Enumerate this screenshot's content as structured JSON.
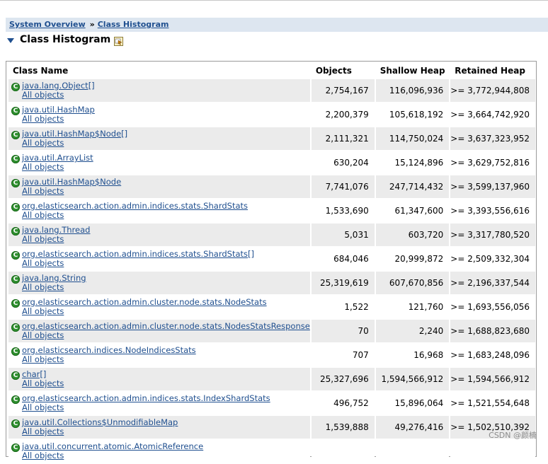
{
  "breadcrumb": {
    "item1": "System Overview",
    "separator": "»",
    "item2": "Class Histogram"
  },
  "heading": {
    "title": "Class Histogram"
  },
  "table": {
    "headers": {
      "class_name": "Class Name",
      "objects": "Objects",
      "shallow": "Shallow Heap",
      "retained": "Retained Heap"
    },
    "all_objects_label": "All objects",
    "rows": [
      {
        "name": "java.lang.Object[]",
        "all": "All objects",
        "objects": "2,754,167",
        "shallow": "116,096,936",
        "retained": ">= 3,772,944,808"
      },
      {
        "name": "java.util.HashMap",
        "all": "All objects",
        "objects": "2,200,379",
        "shallow": "105,618,192",
        "retained": ">= 3,664,742,920"
      },
      {
        "name": "java.util.HashMap$Node[]",
        "all": "All objects",
        "objects": "2,111,321",
        "shallow": "114,750,024",
        "retained": ">= 3,637,323,952"
      },
      {
        "name": "java.util.ArrayList",
        "all": "All objects",
        "objects": "630,204",
        "shallow": "15,124,896",
        "retained": ">= 3,629,752,816"
      },
      {
        "name": "java.util.HashMap$Node",
        "all": "All objects",
        "objects": "7,741,076",
        "shallow": "247,714,432",
        "retained": ">= 3,599,137,960"
      },
      {
        "name": "org.elasticsearch.action.admin.indices.stats.ShardStats",
        "all": "All objects",
        "objects": "1,533,690",
        "shallow": "61,347,600",
        "retained": ">= 3,393,556,616"
      },
      {
        "name": "java.lang.Thread",
        "all": "All objects",
        "objects": "5,031",
        "shallow": "603,720",
        "retained": ">= 3,317,780,520"
      },
      {
        "name": "org.elasticsearch.action.admin.indices.stats.ShardStats[]",
        "all": "All objects",
        "objects": "684,046",
        "shallow": "20,999,872",
        "retained": ">= 2,509,332,304"
      },
      {
        "name": "java.lang.String",
        "all": "All objects",
        "objects": "25,319,619",
        "shallow": "607,670,856",
        "retained": ">= 2,196,337,544"
      },
      {
        "name": "org.elasticsearch.action.admin.cluster.node.stats.NodeStats",
        "all": "All objects",
        "objects": "1,522",
        "shallow": "121,760",
        "retained": ">= 1,693,556,056"
      },
      {
        "name": "org.elasticsearch.action.admin.cluster.node.stats.NodesStatsResponse",
        "all": "All objects",
        "objects": "70",
        "shallow": "2,240",
        "retained": ">= 1,688,823,680"
      },
      {
        "name": "org.elasticsearch.indices.NodeIndicesStats",
        "all": "All objects",
        "objects": "707",
        "shallow": "16,968",
        "retained": ">= 1,683,248,096"
      },
      {
        "name": "char[]",
        "all": "All objects",
        "objects": "25,327,696",
        "shallow": "1,594,566,912",
        "retained": ">= 1,594,566,912"
      },
      {
        "name": "org.elasticsearch.action.admin.indices.stats.IndexShardStats",
        "all": "All objects",
        "objects": "496,752",
        "shallow": "15,896,064",
        "retained": ">= 1,521,554,648"
      },
      {
        "name": "java.util.Collections$UnmodifiableMap",
        "all": "All objects",
        "objects": "1,539,888",
        "shallow": "49,276,416",
        "retained": ">= 1,502,510,392"
      },
      {
        "name": "java.util.concurrent.atomic.AtomicReference",
        "all": "All objects",
        "objects": "",
        "shallow": "",
        "retained": ""
      }
    ]
  },
  "icons": {
    "class": "class-icon",
    "query": "query-icon",
    "expand": "triangle-down-icon"
  },
  "colors": {
    "link": "#1f4f8f",
    "breadcrumb_bg": "#dde6f0",
    "row_alt": "#ebebeb",
    "class_icon": "#2f8f2f"
  },
  "watermark": "CSDN @颜楠"
}
